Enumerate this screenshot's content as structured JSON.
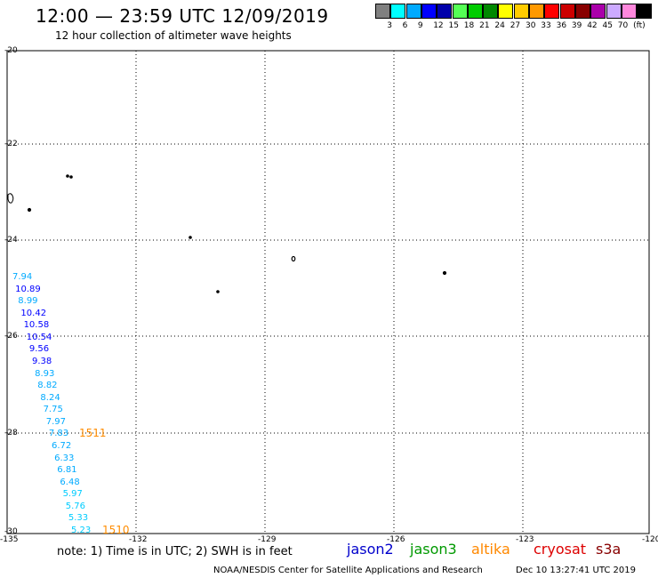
{
  "header": {
    "title": "12:00 — 23:59 UTC 12/09/2019",
    "subtitle": "12 hour collection of altimeter wave heights"
  },
  "legend": {
    "swatches": [
      {
        "color": "#808080",
        "label": ""
      },
      {
        "color": "#00ffff",
        "label": "3"
      },
      {
        "color": "#00aaff",
        "label": "6"
      },
      {
        "color": "#0000ff",
        "label": "9"
      },
      {
        "color": "#0000aa",
        "label": "12"
      },
      {
        "color": "#55ff55",
        "label": "15"
      },
      {
        "color": "#00cc00",
        "label": "18"
      },
      {
        "color": "#008800",
        "label": "21"
      },
      {
        "color": "#ffff00",
        "label": "24"
      },
      {
        "color": "#ffcc00",
        "label": "27"
      },
      {
        "color": "#ff9900",
        "label": "30"
      },
      {
        "color": "#ff0000",
        "label": "33"
      },
      {
        "color": "#cc0000",
        "label": "36"
      },
      {
        "color": "#880000",
        "label": "39"
      },
      {
        "color": "#aa00aa",
        "label": "42"
      },
      {
        "color": "#ccaaff",
        "label": "45"
      },
      {
        "color": "#ff88dd",
        "label": "70"
      },
      {
        "color": "#000000",
        "label": "(ft)"
      }
    ]
  },
  "axes": {
    "lat_labels": [
      "-20",
      "-22",
      "-24",
      "-26",
      "-28",
      "-30"
    ],
    "lon_labels": [
      "-135",
      "-132",
      "-129",
      "-126",
      "-123",
      "-120"
    ]
  },
  "wave_heights": [
    {
      "value": "7.94",
      "color": "#00aaff"
    },
    {
      "value": "10.89",
      "color": "#0000ff"
    },
    {
      "value": "8.99",
      "color": "#00aaff"
    },
    {
      "value": "10.42",
      "color": "#0000ff"
    },
    {
      "value": "10.58",
      "color": "#0000ff"
    },
    {
      "value": "10.54",
      "color": "#0000ff"
    },
    {
      "value": "9.56",
      "color": "#0000ff"
    },
    {
      "value": "9.38",
      "color": "#0000ff"
    },
    {
      "value": "8.93",
      "color": "#00aaff"
    },
    {
      "value": "8.82",
      "color": "#00aaff"
    },
    {
      "value": "8.24",
      "color": "#00aaff"
    },
    {
      "value": "7.75",
      "color": "#00aaff"
    },
    {
      "value": "7.97",
      "color": "#00aaff"
    },
    {
      "value": "7.83",
      "color": "#00aaff"
    },
    {
      "value": "6.72",
      "color": "#00aaff"
    },
    {
      "value": "6.33",
      "color": "#00aaff"
    },
    {
      "value": "6.81",
      "color": "#00aaff"
    },
    {
      "value": "6.48",
      "color": "#00aaff"
    },
    {
      "value": "5.97",
      "color": "#00ccff"
    },
    {
      "value": "5.76",
      "color": "#00ccff"
    },
    {
      "value": "5.33",
      "color": "#00ccff"
    },
    {
      "value": "5.23",
      "color": "#00ccff"
    }
  ],
  "time_labels": [
    "1511",
    "1510"
  ],
  "note": "note:  1) Time is in UTC;  2) SWH is in feet",
  "satellites": [
    {
      "name": "jason2",
      "color": "#0000cc"
    },
    {
      "name": "jason3",
      "color": "#009900"
    },
    {
      "name": "altika",
      "color": "#ff8800"
    },
    {
      "name": "cryosat",
      "color": "#dd0000"
    },
    {
      "name": "s3a",
      "color": "#880000"
    }
  ],
  "footer": {
    "credit": "NOAA/NESDIS Center for Satellite Applications and Research",
    "timestamp": "Dec 10 13:27:41 UTC 2019"
  }
}
